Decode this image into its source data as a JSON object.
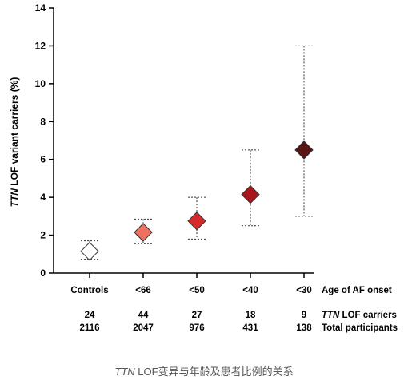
{
  "chart_data": {
    "type": "scatter",
    "ylabel_italic": "TTN",
    "ylabel_rest": " LOF variant carriers (%)",
    "ylim": [
      0,
      14
    ],
    "yticks": [
      "0",
      "2",
      "4",
      "6",
      "8",
      "10",
      "12",
      "14"
    ],
    "ytick_values": [
      0,
      2,
      4,
      6,
      8,
      10,
      12,
      14
    ],
    "categories": [
      "Controls",
      "<66",
      "<50",
      "<40",
      "<30"
    ],
    "category_axis_label": "Age of AF onset",
    "values": [
      1.15,
      2.15,
      2.75,
      4.15,
      6.5
    ],
    "ci_low": [
      0.7,
      1.55,
      1.8,
      2.5,
      3.0
    ],
    "ci_high": [
      1.7,
      2.85,
      4.0,
      6.5,
      12.0
    ],
    "marker_colors": [
      "#ffffff",
      "#f07060",
      "#d42a2a",
      "#a8161c",
      "#5a1414"
    ],
    "carriers": [
      "24",
      "44",
      "27",
      "18",
      "9"
    ],
    "carriers_label_italic": "TTN",
    "carriers_label_rest": " LOF carriers",
    "participants": [
      "2116",
      "2047",
      "976",
      "431",
      "138"
    ],
    "participants_label": "Total participants"
  },
  "caption": {
    "italic": "TTN",
    "rest": " LOF变异与年龄及患者比例的关系"
  }
}
